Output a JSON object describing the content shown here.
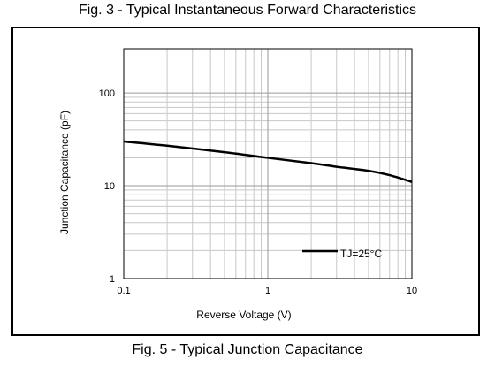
{
  "header": {
    "title": "Fig. 3 - Typical Instantaneous Forward Characteristics"
  },
  "footer": {
    "caption": "Fig. 5 - Typical Junction Capacitance"
  },
  "chart_data": {
    "type": "line",
    "title": "",
    "xlabel": "Reverse Voltage (V)",
    "ylabel": "Junction Capacitance (pF)",
    "xscale": "log",
    "yscale": "log",
    "xlim": [
      0.1,
      10
    ],
    "ylim": [
      1,
      300
    ],
    "x_ticks": [
      {
        "value": 0.1,
        "label": "0.1"
      },
      {
        "value": 1,
        "label": "1"
      },
      {
        "value": 10,
        "label": "10"
      }
    ],
    "y_ticks": [
      {
        "value": 1,
        "label": "1"
      },
      {
        "value": 10,
        "label": "10"
      },
      {
        "value": 100,
        "label": "100"
      }
    ],
    "grid": true,
    "legend_position": "bottom-right",
    "series": [
      {
        "name": "TJ=25°C",
        "color": "#000000",
        "x": [
          0.1,
          0.2,
          0.5,
          1,
          2,
          3,
          5,
          7,
          10
        ],
        "y": [
          30,
          27,
          23,
          20,
          17.5,
          16,
          14.5,
          13,
          11
        ]
      }
    ]
  }
}
